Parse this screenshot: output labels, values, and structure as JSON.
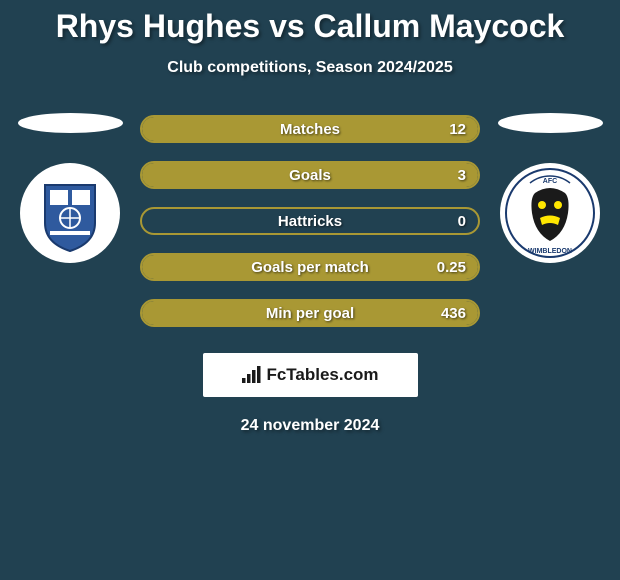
{
  "title": "Rhys Hughes vs Callum Maycock",
  "subtitle": "Club competitions, Season 2024/2025",
  "footer_date": "24 november 2024",
  "footer_brand": "FcTables.com",
  "colors": {
    "background": "#214151",
    "bar_border": "#a99834",
    "bar_fill": "#a99834",
    "text": "#ffffff"
  },
  "players": {
    "left": {
      "name": "Rhys Hughes",
      "club": "Tranmere Rovers",
      "badge_primary": "#2f5a9e",
      "badge_secondary": "#ffffff"
    },
    "right": {
      "name": "Callum Maycock",
      "club": "AFC Wimbledon",
      "badge_primary": "#1a1a1a",
      "badge_secondary": "#ffe600"
    }
  },
  "stats": [
    {
      "label": "Matches",
      "value_left": null,
      "value_right": "12",
      "fill_left_pct": 0,
      "fill_right_pct": 100
    },
    {
      "label": "Goals",
      "value_left": null,
      "value_right": "3",
      "fill_left_pct": 0,
      "fill_right_pct": 100
    },
    {
      "label": "Hattricks",
      "value_left": null,
      "value_right": "0",
      "fill_left_pct": 0,
      "fill_right_pct": 0
    },
    {
      "label": "Goals per match",
      "value_left": null,
      "value_right": "0.25",
      "fill_left_pct": 0,
      "fill_right_pct": 100
    },
    {
      "label": "Min per goal",
      "value_left": null,
      "value_right": "436",
      "fill_left_pct": 0,
      "fill_right_pct": 100
    }
  ]
}
